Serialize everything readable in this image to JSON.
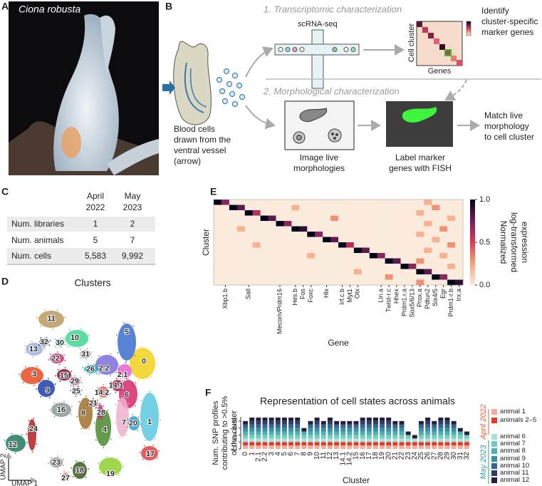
{
  "panel_letters": [
    "A",
    "B",
    "C",
    "D",
    "E",
    "F"
  ],
  "panel_a": {
    "caption": "Ciona robusta"
  },
  "panel_b": {
    "step1": "1. Transcriptomic characterization",
    "scrnaseq": "scRNA-seq",
    "identify": [
      "Identify",
      "cluster-specific",
      "marker genes"
    ],
    "cell_cluster": "Cell cluster",
    "genes": "Genes",
    "step2": "2. Morphological characterization",
    "blood": [
      "Blood cells",
      "drawn from the",
      "ventral vessel",
      "(arrow)"
    ],
    "image_live": [
      "Image live",
      "morphologies"
    ],
    "label_marker": [
      "Label marker",
      "genes with FISH"
    ],
    "match": [
      "Match live",
      "morphology",
      "to cell cluster"
    ]
  },
  "table": {
    "columns": [
      [
        "April",
        "2022"
      ],
      [
        "May",
        "2023"
      ]
    ],
    "rows": [
      [
        "Num. libraries",
        1,
        2
      ],
      [
        "Num. animals",
        5,
        7
      ],
      [
        "Num. cells",
        "5,583",
        "9,992"
      ]
    ]
  },
  "chart_data": [
    {
      "type": "scatter",
      "title": "Clusters",
      "xlabel": "UMAP 1",
      "ylabel": "UMAP 2",
      "cluster_labels": [
        "0",
        "1",
        "2.1",
        "2.2",
        "3",
        "4",
        "5",
        "6",
        "7",
        "8",
        "9",
        "10",
        "11",
        "12",
        "13",
        "14.1",
        "14.2",
        "15",
        "16",
        "17",
        "18",
        "19",
        "20",
        "21",
        "22",
        "23",
        "24",
        "25",
        "26",
        "27",
        "28",
        "29",
        "30",
        "31",
        "32"
      ]
    },
    {
      "type": "heatmap",
      "xlabel": "Gene",
      "ylabel": "Cluster",
      "x": [
        null,
        "Xbp1.b",
        null,
        null,
        "Sall",
        null,
        null,
        null,
        "Mecom/Prdm16",
        null,
        "Hes.b",
        "Fos",
        "Foxc",
        null,
        "Hlx",
        null,
        "Irf.c.b",
        "Myt1",
        "Otx",
        null,
        null,
        "Lin.a",
        "Twist-r.c",
        "Hhex",
        "Prdm1.r.a",
        "Sox5/6/13",
        "Prox.a",
        "Pdtun2",
        "Six4/5",
        "Egr",
        "Prdm1-r.b",
        "Irx.a"
      ],
      "values": [
        [
          1,
          0.7,
          0,
          0,
          0,
          0,
          0,
          0,
          0,
          0,
          0,
          0,
          0,
          0,
          0,
          0,
          0,
          0,
          0,
          0,
          0,
          0,
          0,
          0,
          0,
          0,
          0,
          0.2,
          0,
          0,
          0,
          0
        ],
        [
          0,
          0,
          1,
          0.8,
          0,
          0,
          0,
          0,
          0,
          0,
          0.2,
          0,
          0,
          0,
          0,
          0,
          0,
          0,
          0,
          0,
          0,
          0,
          0,
          0,
          0,
          0,
          0,
          0,
          0.3,
          0,
          0,
          0
        ],
        [
          0,
          0,
          0,
          0,
          1,
          0.6,
          0,
          0,
          0,
          0,
          0,
          0,
          0,
          0,
          0,
          0,
          0,
          0,
          0,
          0,
          0,
          0,
          0,
          0,
          0,
          0,
          0.2,
          0,
          0,
          0,
          0,
          0
        ],
        [
          0,
          0,
          0,
          0,
          0,
          0,
          1,
          0.8,
          0,
          0,
          0,
          0,
          0,
          0,
          0,
          0.3,
          0,
          0,
          0,
          0,
          0,
          0,
          0,
          0,
          0,
          0,
          0,
          0,
          0,
          0,
          0.2,
          0
        ],
        [
          0,
          0,
          0,
          0,
          0,
          0,
          0,
          0,
          1,
          0.7,
          0,
          0,
          0,
          0,
          0,
          0,
          0,
          0,
          0,
          0,
          0,
          0,
          0,
          0,
          0,
          0,
          0,
          0.2,
          0,
          0,
          0,
          0
        ],
        [
          0,
          0,
          0,
          0.2,
          0,
          0,
          0,
          0,
          0,
          0,
          1,
          0.9,
          0,
          0,
          0,
          0,
          0,
          0,
          0,
          0,
          0,
          0,
          0,
          0,
          0,
          0,
          0,
          0,
          0,
          0.3,
          0,
          0
        ],
        [
          0,
          0,
          0,
          0,
          0,
          0,
          0,
          0,
          0,
          0,
          0,
          0,
          1,
          0.7,
          0,
          0,
          0,
          0,
          0,
          0,
          0,
          0,
          0,
          0,
          0,
          0,
          0.2,
          0,
          0,
          0,
          0,
          0
        ],
        [
          0,
          0,
          0,
          0,
          0,
          0,
          0,
          0,
          0,
          0,
          0,
          0,
          0,
          0,
          1,
          0.8,
          0,
          0,
          0,
          0,
          0,
          0,
          0,
          0,
          0,
          0,
          0,
          0,
          0.2,
          0,
          0,
          0
        ],
        [
          0,
          0,
          0,
          0,
          0,
          0.2,
          0,
          0,
          0,
          0,
          0,
          0,
          0,
          0,
          0,
          0,
          1,
          0.6,
          0,
          0,
          0,
          0,
          0,
          0,
          0,
          0,
          0,
          0,
          0,
          0,
          0.3,
          0
        ],
        [
          0,
          0,
          0,
          0,
          0,
          0,
          0,
          0,
          0,
          0,
          0,
          0,
          0,
          0,
          0,
          0,
          0,
          0,
          1,
          0.8,
          0,
          0,
          0,
          0,
          0,
          0,
          0,
          0.2,
          0,
          0,
          0,
          0
        ],
        [
          0,
          0,
          0,
          0,
          0,
          0,
          0,
          0,
          0,
          0,
          0,
          0,
          0.2,
          0,
          0,
          0,
          0,
          0,
          0,
          0,
          1,
          0.7,
          0,
          0,
          0,
          0,
          0,
          0,
          0,
          0.2,
          0,
          0
        ],
        [
          0,
          0,
          0,
          0,
          0,
          0,
          0,
          0,
          0,
          0,
          0,
          0,
          0,
          0,
          0,
          0,
          0,
          0,
          0,
          0,
          0,
          0,
          1,
          0.8,
          0,
          0,
          0.3,
          0,
          0,
          0,
          0,
          0
        ],
        [
          0,
          0,
          0,
          0,
          0,
          0,
          0,
          0,
          0,
          0,
          0,
          0,
          0,
          0,
          0,
          0,
          0,
          0,
          0,
          0,
          0,
          0,
          0,
          0,
          1,
          0.7,
          0,
          0,
          0,
          0,
          0.2,
          0
        ],
        [
          0,
          0,
          0,
          0,
          0,
          0,
          0,
          0,
          0,
          0,
          0,
          0,
          0,
          0,
          0,
          0,
          0,
          0,
          0.2,
          0,
          0,
          0,
          0,
          0,
          0,
          0,
          1,
          0.8,
          0,
          0,
          0,
          0
        ],
        [
          0,
          0,
          0,
          0,
          0,
          0,
          0,
          0,
          0,
          0,
          0,
          0,
          0,
          0,
          0,
          0,
          0,
          0,
          0,
          0,
          0,
          0,
          0.3,
          0,
          0,
          0,
          0,
          0,
          1,
          0.7,
          0,
          0
        ],
        [
          0,
          0,
          0,
          0,
          0,
          0,
          0,
          0,
          0,
          0,
          0,
          0,
          0,
          0,
          0,
          0,
          0,
          0,
          0,
          0,
          0,
          0,
          0,
          0,
          0,
          0,
          0.3,
          0,
          0,
          0,
          1,
          0.9
        ]
      ],
      "zlim": [
        0,
        1
      ],
      "zticks": [
        {
          "value": 0,
          "label": "0.0"
        },
        0.5,
        {
          "value": 1,
          "label": "1.0"
        }
      ],
      "colorbar_label": [
        "Normalized",
        "log-transformed",
        "expression"
      ]
    },
    {
      "type": "stacked_bar",
      "title": "Representation of cell states across animals",
      "ylabel": [
        "Num. SNP profiles",
        "contributing to >0.5%",
        "of the cluster"
      ],
      "xlabel": "Cluster",
      "categories": [
        "0",
        "1",
        "2.1",
        "2.2",
        "3",
        "4",
        "5",
        "6",
        "7",
        "8",
        "9",
        "10",
        "11",
        "12",
        "13",
        "14.1",
        "14.2",
        "15",
        "16",
        "17",
        "18",
        "19",
        "20",
        "21",
        "22",
        "23",
        "24",
        "25",
        "26",
        "27",
        "28",
        "29",
        "30",
        "31",
        "32"
      ],
      "series": [
        {
          "name": "animal 1",
          "color": "#f6ad94",
          "values": [
            1,
            1,
            1,
            1,
            1,
            1,
            1,
            1,
            1,
            1,
            1,
            1,
            1,
            1,
            1,
            1,
            1,
            1,
            1,
            1,
            1,
            1,
            1,
            1,
            1,
            1,
            1,
            1,
            1,
            1,
            1,
            1,
            1,
            1,
            1
          ]
        },
        {
          "name": "animals 2–5",
          "color": "#e33a30",
          "values": [
            1,
            1,
            1,
            1,
            1,
            1,
            1,
            1,
            1,
            1,
            1,
            1,
            1,
            1,
            1,
            1,
            1,
            1,
            1,
            1,
            1,
            1,
            1,
            1,
            1,
            1,
            1,
            1,
            1,
            1,
            1,
            1,
            1,
            1,
            1
          ]
        },
        {
          "name": "animal 6",
          "color": "#a8e2d6",
          "values": [
            1,
            1,
            1,
            1,
            1,
            1,
            1,
            1,
            1,
            1,
            1,
            1,
            1,
            1,
            1,
            1,
            1,
            1,
            1,
            1,
            1,
            1,
            1,
            1,
            1,
            1,
            1,
            1,
            1,
            1,
            1,
            1,
            1,
            1,
            1
          ]
        },
        {
          "name": "animal 7",
          "color": "#72ccc0",
          "values": [
            1,
            1,
            1,
            1,
            1,
            1,
            1,
            1,
            1,
            1,
            1,
            1,
            1,
            1,
            1,
            1,
            1,
            1,
            1,
            1,
            1,
            1,
            1,
            1,
            1,
            1,
            0,
            1,
            1,
            1,
            1,
            1,
            1,
            1,
            1
          ]
        },
        {
          "name": "animal 8",
          "color": "#4cb0b0",
          "values": [
            1,
            1,
            1,
            1,
            1,
            1,
            1,
            1,
            1,
            1,
            1,
            1,
            1,
            1,
            1,
            1,
            1,
            1,
            1,
            1,
            1,
            1,
            1,
            1,
            1,
            0,
            0,
            1,
            1,
            1,
            1,
            1,
            1,
            1,
            0
          ]
        },
        {
          "name": "animal 9",
          "color": "#3a8ea6",
          "values": [
            1,
            1,
            1,
            1,
            1,
            1,
            1,
            1,
            1,
            0,
            1,
            1,
            1,
            1,
            1,
            1,
            1,
            1,
            1,
            1,
            1,
            1,
            1,
            1,
            1,
            0,
            0,
            1,
            1,
            1,
            1,
            1,
            1,
            0,
            0
          ]
        },
        {
          "name": "animal 10",
          "color": "#34678f",
          "values": [
            1,
            1,
            1,
            1,
            1,
            1,
            1,
            1,
            1,
            0,
            1,
            1,
            1,
            1,
            1,
            1,
            1,
            1,
            1,
            1,
            1,
            1,
            1,
            1,
            1,
            0,
            0,
            1,
            1,
            1,
            1,
            1,
            1,
            0,
            0
          ]
        },
        {
          "name": "animal 11",
          "color": "#2c3f6c",
          "values": [
            0,
            1,
            1,
            1,
            1,
            1,
            1,
            1,
            1,
            0,
            0,
            1,
            0,
            1,
            0,
            0,
            0,
            0,
            1,
            1,
            1,
            1,
            1,
            0,
            0,
            0,
            0,
            0,
            1,
            0,
            1,
            1,
            0,
            0,
            0
          ]
        },
        {
          "name": "animal 12",
          "color": "#231f3d",
          "values": [
            1,
            1,
            1,
            1,
            1,
            1,
            1,
            1,
            1,
            1,
            1,
            1,
            1,
            1,
            1,
            1,
            1,
            1,
            1,
            1,
            1,
            1,
            1,
            1,
            1,
            1,
            1,
            1,
            1,
            1,
            1,
            1,
            1,
            1,
            1
          ]
        }
      ],
      "ylim": [
        0,
        9.2
      ],
      "yticks": [
        0,
        2,
        4,
        6,
        8
      ],
      "legend_groups": [
        "April 2022",
        "May 2023"
      ]
    }
  ]
}
